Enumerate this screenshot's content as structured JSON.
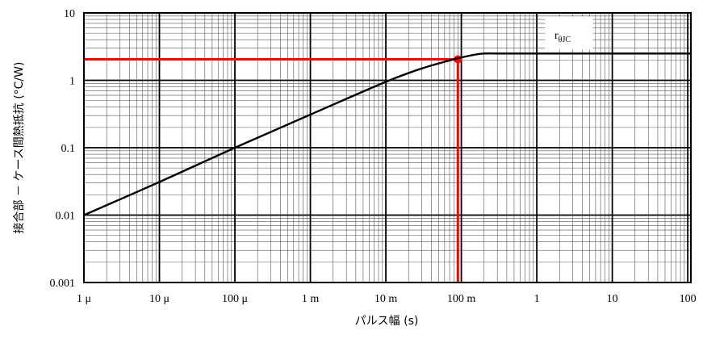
{
  "chart_data": {
    "type": "line",
    "scale": {
      "x": "log",
      "y": "log"
    },
    "xlim": [
      1e-06,
      110
    ],
    "ylim": [
      0.001,
      10
    ],
    "xlabel": "パルス幅 (s)",
    "ylabel": "接合部 － ケース間熱抵抗 (°C/W)",
    "x_ticks": [
      {
        "value": 1e-06,
        "label": "1 μ"
      },
      {
        "value": 1e-05,
        "label": "10 μ"
      },
      {
        "value": 0.0001,
        "label": "100 μ"
      },
      {
        "value": 0.001,
        "label": "1 m"
      },
      {
        "value": 0.01,
        "label": "10 m"
      },
      {
        "value": 0.1,
        "label": "100 m"
      },
      {
        "value": 1,
        "label": "1"
      },
      {
        "value": 10,
        "label": "10"
      },
      {
        "value": 100,
        "label": "100"
      }
    ],
    "y_ticks": [
      {
        "value": 10,
        "label": "10"
      },
      {
        "value": 1,
        "label": "1"
      },
      {
        "value": 0.1,
        "label": "0.1"
      },
      {
        "value": 0.01,
        "label": "0.01"
      },
      {
        "value": 0.001,
        "label": "0.001"
      }
    ],
    "grid": true,
    "series": [
      {
        "name": "rθJC",
        "name_base": "r",
        "name_sub": "θJC",
        "color": "#000000",
        "legend_position": "top-right",
        "x": [
          1e-06,
          1e-05,
          0.0001,
          0.001,
          0.01,
          0.03,
          0.08,
          0.15,
          0.2,
          0.3,
          1,
          10,
          110
        ],
        "y": [
          0.01,
          0.031,
          0.1,
          0.31,
          0.95,
          1.5,
          2.05,
          2.4,
          2.5,
          2.5,
          2.5,
          2.5,
          2.5
        ]
      }
    ],
    "annotation": {
      "color": "#ff0000",
      "x": 0.09,
      "y": 2.05
    }
  }
}
